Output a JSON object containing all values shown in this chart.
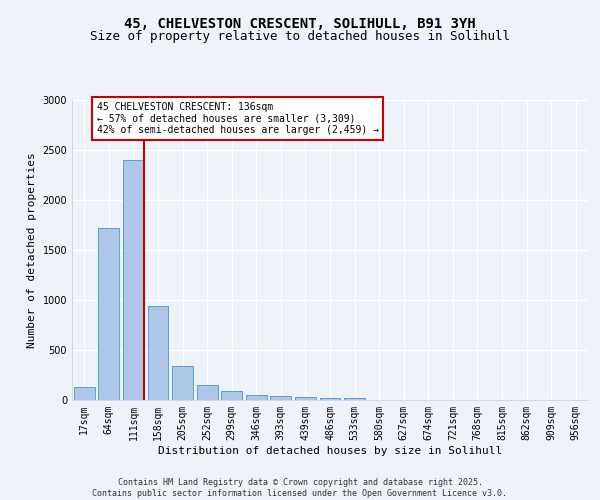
{
  "title1": "45, CHELVESTON CRESCENT, SOLIHULL, B91 3YH",
  "title2": "Size of property relative to detached houses in Solihull",
  "xlabel": "Distribution of detached houses by size in Solihull",
  "ylabel": "Number of detached properties",
  "categories": [
    "17sqm",
    "64sqm",
    "111sqm",
    "158sqm",
    "205sqm",
    "252sqm",
    "299sqm",
    "346sqm",
    "393sqm",
    "439sqm",
    "486sqm",
    "533sqm",
    "580sqm",
    "627sqm",
    "674sqm",
    "721sqm",
    "768sqm",
    "815sqm",
    "862sqm",
    "909sqm",
    "956sqm"
  ],
  "values": [
    130,
    1720,
    2400,
    940,
    340,
    155,
    90,
    55,
    45,
    35,
    25,
    20,
    5,
    2,
    0,
    0,
    0,
    0,
    0,
    0,
    0
  ],
  "bar_color": "#aec6e8",
  "bar_edge_color": "#5a9fd4",
  "red_line_index": 2,
  "annotation_title": "45 CHELVESTON CRESCENT: 136sqm",
  "annotation_line1": "← 57% of detached houses are smaller (3,309)",
  "annotation_line2": "42% of semi-detached houses are larger (2,459) →",
  "annotation_box_color": "#ffffff",
  "annotation_box_edge": "#cc0000",
  "red_line_color": "#cc0000",
  "ylim": [
    0,
    3000
  ],
  "yticks": [
    0,
    500,
    1000,
    1500,
    2000,
    2500,
    3000
  ],
  "footer1": "Contains HM Land Registry data © Crown copyright and database right 2025.",
  "footer2": "Contains public sector information licensed under the Open Government Licence v3.0.",
  "background_color": "#eef2f9",
  "grid_color": "#ffffff",
  "title1_fontsize": 10,
  "title2_fontsize": 9,
  "xlabel_fontsize": 8,
  "ylabel_fontsize": 8,
  "tick_fontsize": 7,
  "footer_fontsize": 6
}
